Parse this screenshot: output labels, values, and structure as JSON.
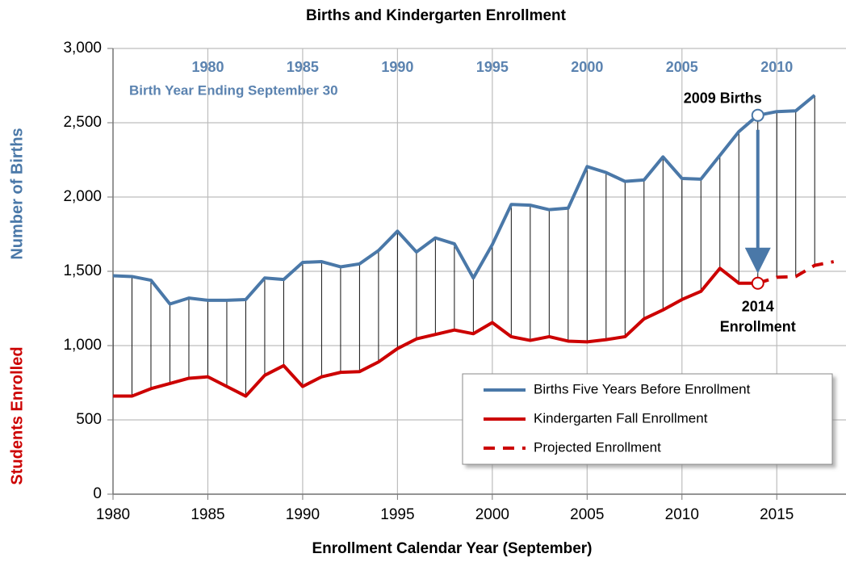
{
  "chart_data": {
    "type": "line",
    "title": "Births and Kindergarten Enrollment",
    "xlabel": "Enrollment Calendar Year (September)",
    "ylabel": "Number of Births",
    "ylabel2": "Students Enrolled",
    "top_axis_label": "Birth Year Ending September 30",
    "annotations": [
      "2009 Births",
      "2014",
      "Enrollment"
    ],
    "xlim": [
      1980,
      2018.65
    ],
    "xticks": [
      1980,
      1985,
      1990,
      1995,
      2000,
      2005,
      2010,
      2015
    ],
    "x2lim": [
      1975,
      2013.65
    ],
    "x2ticks": [
      1980,
      1985,
      1990,
      1995,
      2000,
      2005,
      2010
    ],
    "ylim": [
      0,
      3000
    ],
    "yticks": [
      0,
      500,
      {
        "value": 1000,
        "label": "1,000"
      },
      {
        "value": 1500,
        "label": "1,500"
      },
      {
        "value": 2000,
        "label": "2,000"
      },
      {
        "value": 2500,
        "label": "2,500"
      },
      {
        "value": 3000,
        "label": "3,000"
      }
    ],
    "grid": true,
    "legend": "lower right",
    "series": [
      {
        "name": "Births Five Years Before Enrollment",
        "color": "#4a78a8",
        "dash": false,
        "x": [
          1980,
          1981,
          1982,
          1983,
          1984,
          1985,
          1986,
          1987,
          1988,
          1989,
          1990,
          1991,
          1992,
          1993,
          1994,
          1995,
          1996,
          1997,
          1998,
          1999,
          2000,
          2001,
          2002,
          2003,
          2004,
          2005,
          2006,
          2007,
          2008,
          2009,
          2010,
          2011,
          2012,
          2013,
          2014,
          2015,
          2016,
          2017
        ],
        "values": [
          1470,
          1465,
          1440,
          1280,
          1320,
          1305,
          1305,
          1310,
          1455,
          1445,
          1560,
          1565,
          1530,
          1550,
          1640,
          1770,
          1630,
          1725,
          1685,
          1455,
          1680,
          1950,
          1945,
          1915,
          1925,
          2205,
          2165,
          2105,
          2115,
          2270,
          2125,
          2120,
          2280,
          2440,
          2550,
          2575,
          2580,
          2685
        ]
      },
      {
        "name": "Kindergarten Fall Enrollment",
        "color": "#cc0000",
        "dash": false,
        "x": [
          1980,
          1981,
          1982,
          1983,
          1984,
          1985,
          1986,
          1987,
          1988,
          1989,
          1990,
          1991,
          1992,
          1993,
          1994,
          1995,
          1996,
          1997,
          1998,
          1999,
          2000,
          2001,
          2002,
          2003,
          2004,
          2005,
          2006,
          2007,
          2008,
          2009,
          2010,
          2011,
          2012,
          2013,
          2014
        ],
        "values": [
          660,
          660,
          710,
          745,
          780,
          790,
          725,
          660,
          800,
          865,
          725,
          790,
          820,
          825,
          890,
          980,
          1045,
          1075,
          1105,
          1080,
          1155,
          1060,
          1035,
          1060,
          1030,
          1025,
          1040,
          1060,
          1180,
          1240,
          1310,
          1365,
          1520,
          1420,
          1420
        ]
      },
      {
        "name": "Projected Enrollment",
        "color": "#cc0000",
        "dash": true,
        "x": [
          2014,
          2015,
          2016,
          2017,
          2018
        ],
        "values": [
          1420,
          1460,
          1465,
          1540,
          1565
        ]
      }
    ]
  }
}
